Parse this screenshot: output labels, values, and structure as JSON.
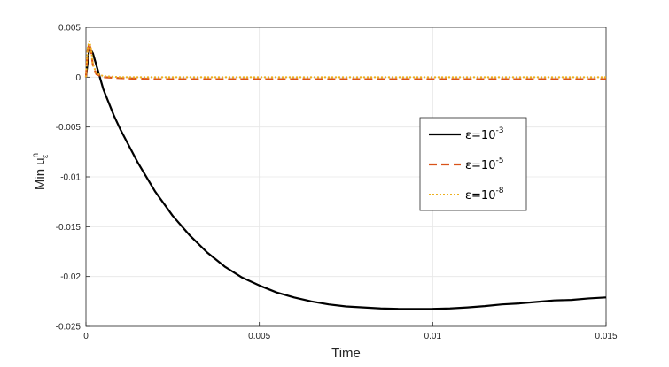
{
  "chart_data": {
    "type": "line",
    "title": "",
    "xlabel": "Time",
    "ylabel": "Min u",
    "ylabel_sup": "n",
    "ylabel_sub": "ε",
    "xlim": [
      0,
      0.015
    ],
    "ylim": [
      -0.025,
      0.005
    ],
    "xticks": [
      0,
      0.005,
      0.01,
      0.015
    ],
    "xtick_labels": [
      "0",
      "0.005",
      "0.01",
      "0.015"
    ],
    "yticks": [
      -0.025,
      -0.02,
      -0.015,
      -0.01,
      -0.005,
      0,
      0.005
    ],
    "ytick_labels": [
      "-0.025",
      "-0.02",
      "-0.015",
      "-0.01",
      "-0.005",
      "0",
      "0.005"
    ],
    "grid": true,
    "legend_position": "right",
    "series": [
      {
        "name": "ε=10",
        "exponent": "-3",
        "color": "#000000",
        "style": "solid",
        "x": [
          0,
          0.0001,
          0.0002,
          0.0003,
          0.0005,
          0.0008,
          0.001,
          0.0015,
          0.002,
          0.0025,
          0.003,
          0.0035,
          0.004,
          0.0045,
          0.005,
          0.0055,
          0.006,
          0.0065,
          0.007,
          0.0075,
          0.008,
          0.0085,
          0.009,
          0.0095,
          0.01,
          0.0105,
          0.011,
          0.0115,
          0.012,
          0.0125,
          0.013,
          0.0135,
          0.014,
          0.0145,
          0.015
        ],
        "y": [
          0,
          0.003,
          0.0024,
          0.0012,
          -0.0012,
          -0.0038,
          -0.0053,
          -0.0086,
          -0.0115,
          -0.0139,
          -0.0159,
          -0.0176,
          -0.019,
          -0.0201,
          -0.0209,
          -0.0216,
          -0.0221,
          -0.0225,
          -0.0228,
          -0.023,
          -0.0231,
          -0.0232,
          -0.02325,
          -0.02326,
          -0.02325,
          -0.0232,
          -0.0231,
          -0.02297,
          -0.0228,
          -0.0227,
          -0.02255,
          -0.0224,
          -0.02235,
          -0.0222,
          -0.0221
        ]
      },
      {
        "name": "ε=10",
        "exponent": "-5",
        "color": "#d95319",
        "style": "dashed",
        "x": [
          0,
          5e-05,
          0.0001,
          0.00015,
          0.0002,
          0.0003,
          0.0005,
          0.001,
          0.002,
          0.003,
          0.005,
          0.008,
          0.01,
          0.012,
          0.015
        ],
        "y": [
          0,
          0.0028,
          0.0034,
          0.0026,
          0.0012,
          0.0003,
          0.0,
          -0.0001,
          -0.0002,
          -0.0002,
          -0.0002,
          -0.0002,
          -0.0002,
          -0.0002,
          -0.0002
        ]
      },
      {
        "name": "ε=10",
        "exponent": "-8",
        "color": "#edb120",
        "style": "dotted",
        "x": [
          0,
          5e-05,
          0.0001,
          0.00015,
          0.0002,
          0.0003,
          0.0005,
          0.001,
          0.002,
          0.005,
          0.01,
          0.015
        ],
        "y": [
          0,
          0.003,
          0.0036,
          0.0028,
          0.0013,
          0.0004,
          0.0001,
          0.0,
          0.0,
          0.0,
          0.0,
          0.0
        ]
      }
    ]
  }
}
